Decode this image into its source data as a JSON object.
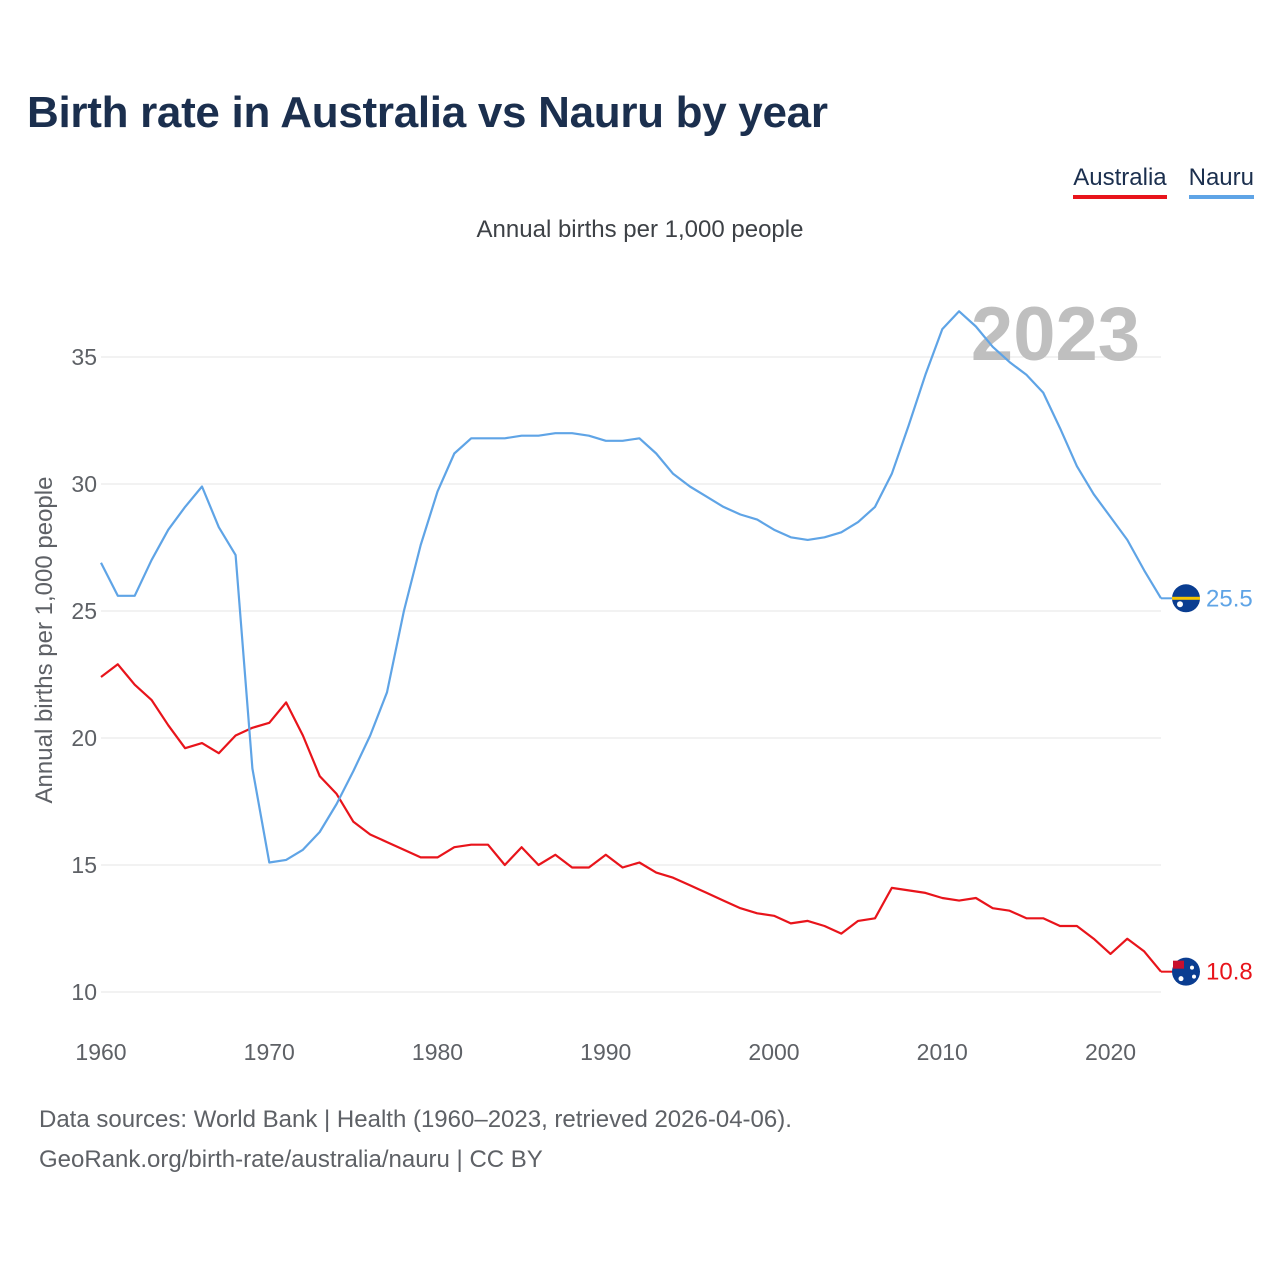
{
  "title": "Birth rate in Australia vs Nauru by year",
  "subtitle": "Annual births per 1,000 people",
  "legend": [
    {
      "name": "Australia",
      "color": "#e8141b"
    },
    {
      "name": "Nauru",
      "color": "#5fa4e6"
    }
  ],
  "source_line1": "Data sources: World Bank | Health (1960–2023, retrieved 2026-04-06).",
  "source_line2": "GeoRank.org/birth-rate/australia/nauru | CC BY",
  "chart_data": {
    "type": "line",
    "title": "Birth rate in Australia vs Nauru by year",
    "ylabel": "Annual births per 1,000 people",
    "xlabel": "",
    "xlim": [
      1960,
      2023
    ],
    "ylim": [
      10,
      37
    ],
    "x_ticks": [
      1960,
      1970,
      1980,
      1990,
      2000,
      2010,
      2020
    ],
    "y_ticks": [
      10,
      15,
      20,
      25,
      30,
      35
    ],
    "year_watermark": "2023",
    "series": [
      {
        "name": "Australia",
        "color": "#e8141b",
        "end_label": "10.8",
        "x": [
          1960,
          1961,
          1962,
          1963,
          1964,
          1965,
          1966,
          1967,
          1968,
          1969,
          1970,
          1971,
          1972,
          1973,
          1974,
          1975,
          1976,
          1977,
          1978,
          1979,
          1980,
          1981,
          1982,
          1983,
          1984,
          1985,
          1986,
          1987,
          1988,
          1989,
          1990,
          1991,
          1992,
          1993,
          1994,
          1995,
          1996,
          1997,
          1998,
          1999,
          2000,
          2001,
          2002,
          2003,
          2004,
          2005,
          2006,
          2007,
          2008,
          2009,
          2010,
          2011,
          2012,
          2013,
          2014,
          2015,
          2016,
          2017,
          2018,
          2019,
          2020,
          2021,
          2022,
          2023
        ],
        "values": [
          22.4,
          22.9,
          22.1,
          21.5,
          20.5,
          19.6,
          19.8,
          19.4,
          20.1,
          20.4,
          20.6,
          21.4,
          20.1,
          18.5,
          17.8,
          16.7,
          16.2,
          15.9,
          15.6,
          15.3,
          15.3,
          15.7,
          15.8,
          15.8,
          15.0,
          15.7,
          15.0,
          15.4,
          14.9,
          14.9,
          15.4,
          14.9,
          15.1,
          14.7,
          14.5,
          14.2,
          13.9,
          13.6,
          13.3,
          13.1,
          13.0,
          12.7,
          12.8,
          12.6,
          12.3,
          12.8,
          12.9,
          14.1,
          14.0,
          13.9,
          13.7,
          13.6,
          13.7,
          13.3,
          13.2,
          12.9,
          12.9,
          12.6,
          12.6,
          12.1,
          11.5,
          12.1,
          11.6,
          10.8
        ]
      },
      {
        "name": "Nauru",
        "color": "#5fa4e6",
        "end_label": "25.5",
        "x": [
          1960,
          1961,
          1962,
          1963,
          1964,
          1965,
          1966,
          1967,
          1968,
          1969,
          1970,
          1971,
          1972,
          1973,
          1974,
          1975,
          1976,
          1977,
          1978,
          1979,
          1980,
          1981,
          1982,
          1983,
          1984,
          1985,
          1986,
          1987,
          1988,
          1989,
          1990,
          1991,
          1992,
          1993,
          1994,
          1995,
          1996,
          1997,
          1998,
          1999,
          2000,
          2001,
          2002,
          2003,
          2004,
          2005,
          2006,
          2007,
          2008,
          2009,
          2010,
          2011,
          2012,
          2013,
          2014,
          2015,
          2016,
          2017,
          2018,
          2019,
          2020,
          2021,
          2022,
          2023
        ],
        "values": [
          26.9,
          25.6,
          25.6,
          27.0,
          28.2,
          29.1,
          29.9,
          28.3,
          27.2,
          18.8,
          15.1,
          15.2,
          15.6,
          16.3,
          17.4,
          18.7,
          20.1,
          21.8,
          25.0,
          27.6,
          29.7,
          31.2,
          31.8,
          31.8,
          31.8,
          31.9,
          31.9,
          32.0,
          32.0,
          31.9,
          31.7,
          31.7,
          31.8,
          31.2,
          30.4,
          29.9,
          29.5,
          29.1,
          28.8,
          28.6,
          28.2,
          27.9,
          27.8,
          27.9,
          28.1,
          28.5,
          29.1,
          30.4,
          32.3,
          34.3,
          36.1,
          36.8,
          36.2,
          35.4,
          34.8,
          34.3,
          33.6,
          32.2,
          30.7,
          29.6,
          28.7,
          27.8,
          26.6,
          25.5
        ]
      }
    ]
  }
}
